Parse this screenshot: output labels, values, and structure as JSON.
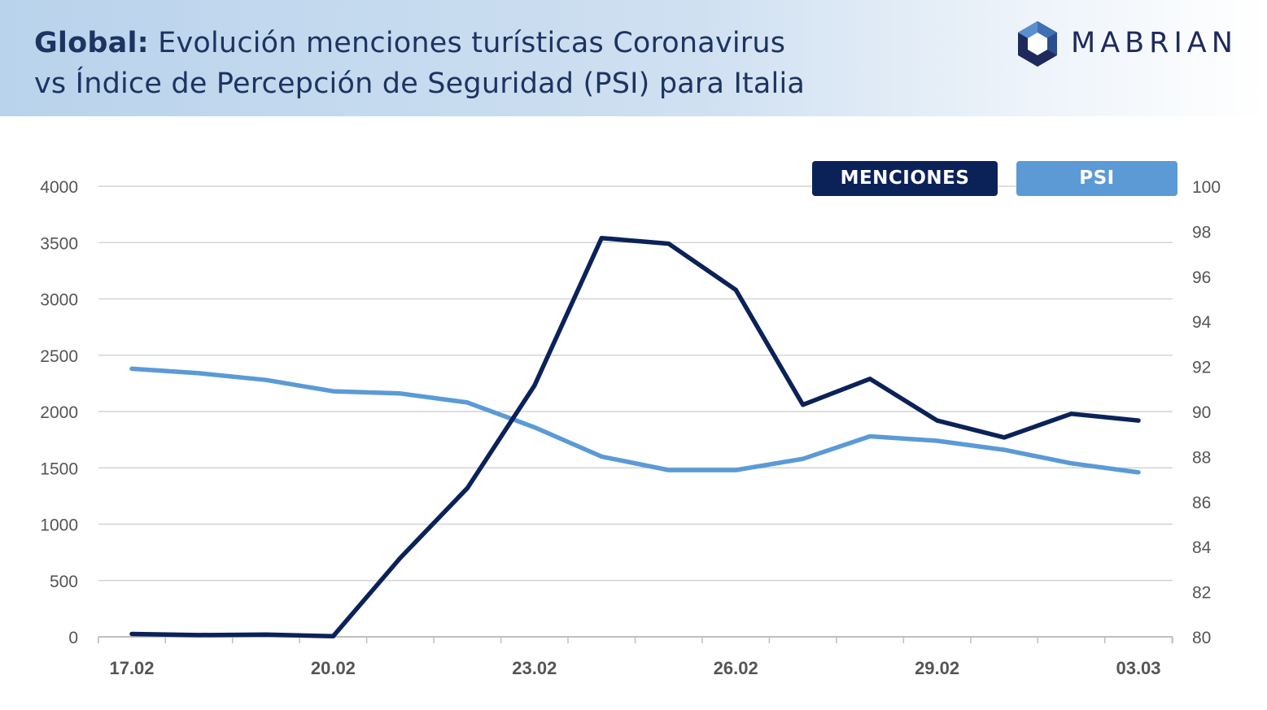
{
  "header": {
    "title_bold": "Global:",
    "title_line1": " Evolución menciones turísticas Coronavirus",
    "title_line2": "vs Índice de Percepción de Seguridad (PSI) para Italia",
    "logo_text": "MABRIAN"
  },
  "colors": {
    "menciones": "#0b2259",
    "psi": "#5b9ad5",
    "grid": "#d4d4d4",
    "axis_text": "#555555",
    "header_text": "#1d3461"
  },
  "chart_data": {
    "type": "line",
    "x": [
      "17.02",
      "18.02",
      "19.02",
      "20.02",
      "21.02",
      "22.02",
      "23.02",
      "24.02",
      "25.02",
      "26.02",
      "27.02",
      "28.02",
      "29.02",
      "01.03",
      "02.03",
      "03.03"
    ],
    "x_tick_labels": [
      "17.02",
      "20.02",
      "23.02",
      "26.02",
      "29.02",
      "03.03"
    ],
    "series": [
      {
        "name": "MENCIONES",
        "axis": "left",
        "values": [
          25,
          15,
          20,
          5,
          700,
          1320,
          2230,
          3540,
          3490,
          3080,
          2060,
          2290,
          1920,
          1770,
          1980,
          1920
        ]
      },
      {
        "name": "PSI",
        "axis": "right",
        "values": [
          91.9,
          91.7,
          91.4,
          90.9,
          90.8,
          90.4,
          89.3,
          88.0,
          87.4,
          87.4,
          87.9,
          88.9,
          88.7,
          88.3,
          87.7,
          87.3
        ]
      }
    ],
    "y_left": {
      "min": 0,
      "max": 4000,
      "ticks": [
        0,
        500,
        1000,
        1500,
        2000,
        2500,
        3000,
        3500,
        4000
      ]
    },
    "y_right": {
      "min": 80,
      "max": 100,
      "ticks": [
        80,
        82,
        84,
        86,
        88,
        90,
        92,
        94,
        96,
        98,
        100
      ]
    },
    "grid": true,
    "legend_position": "top-right"
  }
}
